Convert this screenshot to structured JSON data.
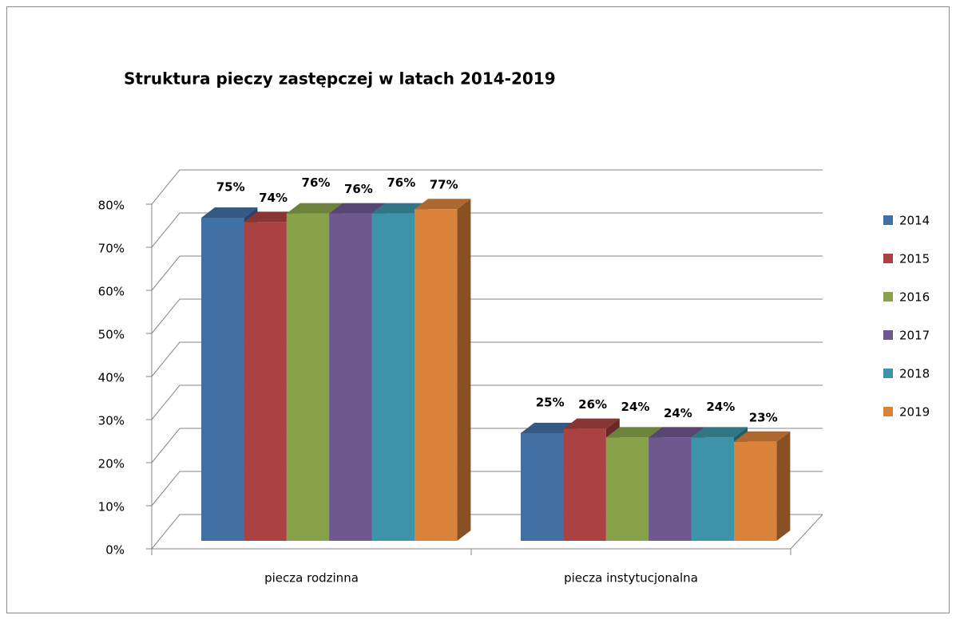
{
  "chart_data": {
    "type": "bar3d",
    "title": "Struktura pieczy zastępczej w latach 2014-2019",
    "categories": [
      "piecza rodzinna",
      "piecza instytucjonalna"
    ],
    "series": [
      {
        "name": "2014",
        "color": "#4170a4",
        "values": [
          75,
          25
        ],
        "value_labels": [
          "75%",
          "25%"
        ]
      },
      {
        "name": "2015",
        "color": "#aa4241",
        "values": [
          74,
          26
        ],
        "value_labels": [
          "74%",
          "26%"
        ]
      },
      {
        "name": "2016",
        "color": "#88a24a",
        "values": [
          76,
          24
        ],
        "value_labels": [
          "76%",
          "24%"
        ]
      },
      {
        "name": "2017",
        "color": "#6e588f",
        "values": [
          76,
          24
        ],
        "value_labels": [
          "76%",
          "24%"
        ]
      },
      {
        "name": "2018",
        "color": "#3d93a9",
        "values": [
          76,
          24
        ],
        "value_labels": [
          "76%",
          "24%"
        ]
      },
      {
        "name": "2019",
        "color": "#d9823a",
        "values": [
          77,
          23
        ],
        "value_labels": [
          "77%",
          "23%"
        ]
      }
    ],
    "ylim": [
      0,
      80
    ],
    "yticks": [
      {
        "value": 0,
        "label": "0%"
      },
      {
        "value": 10,
        "label": "10%"
      },
      {
        "value": 20,
        "label": "20%"
      },
      {
        "value": 30,
        "label": "30%"
      },
      {
        "value": 40,
        "label": "40%"
      },
      {
        "value": 50,
        "label": "50%"
      },
      {
        "value": 60,
        "label": "60%"
      },
      {
        "value": 70,
        "label": "70%"
      },
      {
        "value": 80,
        "label": "80%"
      }
    ],
    "grid": true,
    "legend": "right"
  }
}
